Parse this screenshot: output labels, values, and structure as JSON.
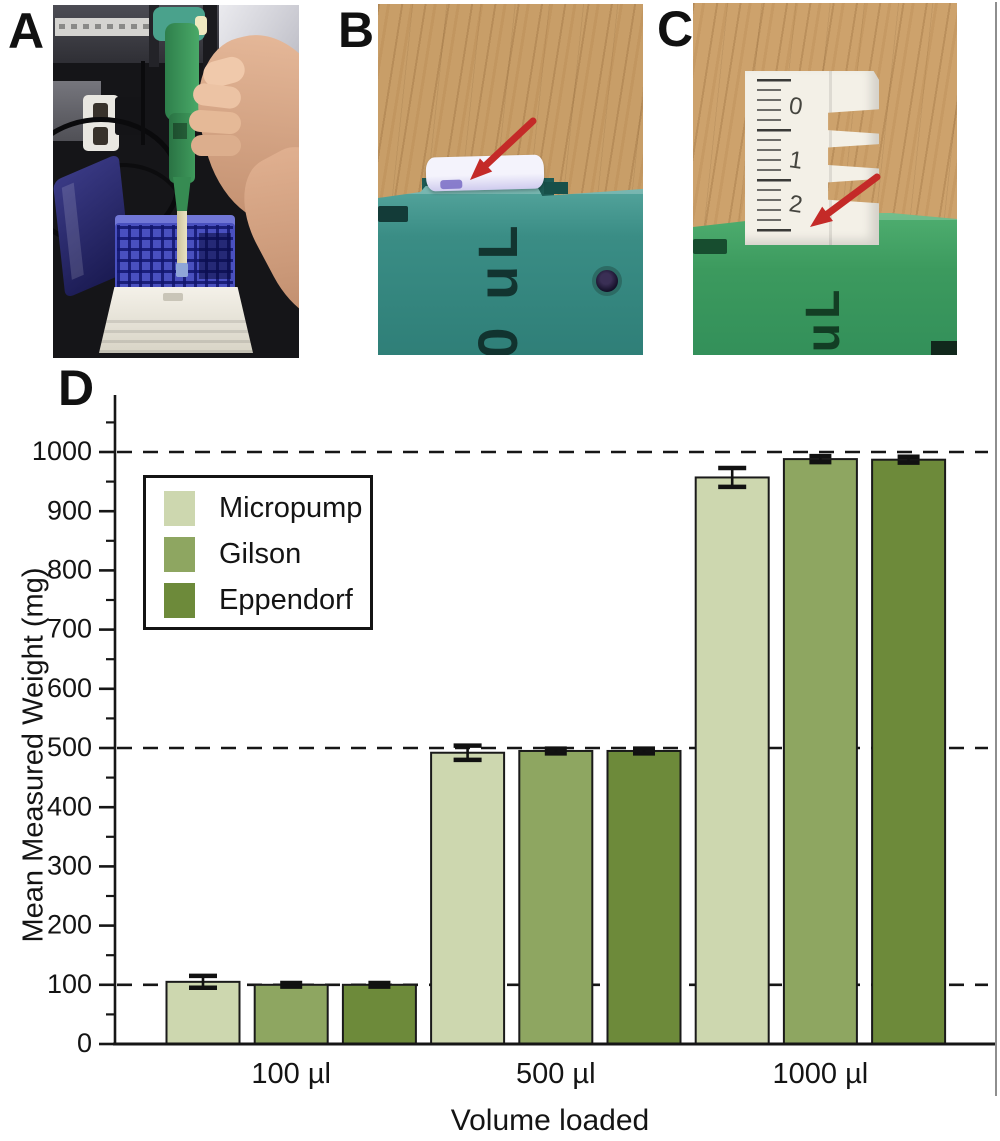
{
  "figure": {
    "panel_labels": {
      "a": "A",
      "b": "B",
      "c": "C",
      "d": "D"
    },
    "photo_b": {
      "embossed_text": "0 uL"
    },
    "photo_c": {
      "embossed_text": "uL",
      "ruler_numbers": [
        "0",
        "1",
        "2"
      ]
    }
  },
  "chart_data": {
    "type": "bar",
    "title": "",
    "xlabel": "Volume loaded",
    "ylabel": "Mean Measured Weight (mg)",
    "categories": [
      "100 µl",
      "500 µl",
      "1000 µl"
    ],
    "series": [
      {
        "name": "Micropump",
        "color": "#cdd7af",
        "values": [
          105,
          492,
          957
        ],
        "errors": [
          10,
          12,
          16
        ]
      },
      {
        "name": "Gilson",
        "color": "#8ea661",
        "values": [
          100,
          495,
          988
        ],
        "errors": [
          3,
          4,
          5
        ]
      },
      {
        "name": "Eppendorf",
        "color": "#6d8a3a",
        "values": [
          100,
          495,
          987
        ],
        "errors": [
          3,
          4,
          5
        ]
      }
    ],
    "ylim": [
      0,
      1100
    ],
    "ytick_step": 100,
    "minor_tick_step": 50,
    "reference_lines": [
      100,
      500,
      1000
    ],
    "legend_position": "upper-left",
    "grid": false,
    "bar_outline": "#1a1a1a",
    "error_color": "#111111",
    "accent_arrow_color": "#c42a28"
  }
}
